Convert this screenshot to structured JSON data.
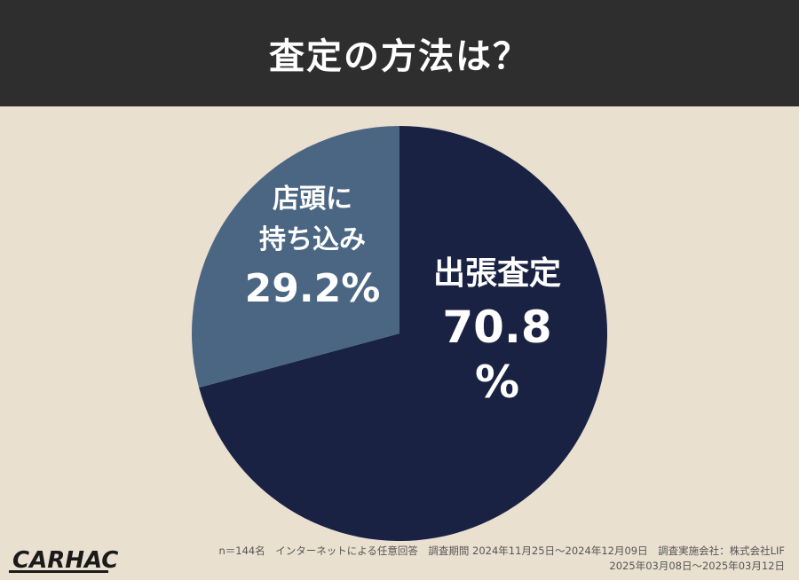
{
  "header": {
    "title": "査定の方法は？"
  },
  "chart_data": {
    "type": "pie",
    "title": "査定の方法は？",
    "slices": [
      {
        "label_lines": [
          "出張査定"
        ],
        "value_lines": [
          "70.8",
          "%"
        ],
        "value": 70.8,
        "color": "#1A2244"
      },
      {
        "label_lines": [
          "店頭に",
          "持ち込み"
        ],
        "value_lines": [
          "29.2%"
        ],
        "value": 29.2,
        "color": "#4A6682"
      }
    ],
    "start_angle_deg": 0,
    "direction": "clockwise"
  },
  "footer": {
    "logo_text": "CARHACK",
    "note_line1": "n＝144名　インターネットによる任意回答　調査期間 2024年11月25日～2024年12月09日　調査実施会社：株式会社LIF",
    "note_line2": "2025年03月08日～2025年03月12日"
  }
}
